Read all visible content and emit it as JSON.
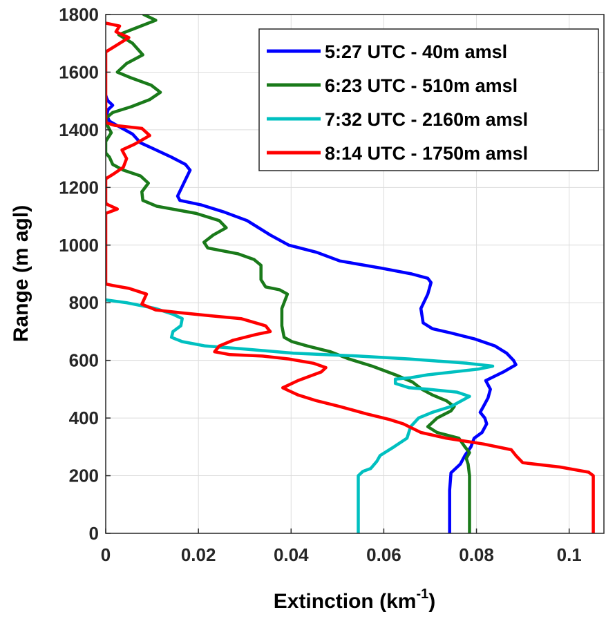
{
  "chart_data": {
    "type": "line",
    "xlabel": "Extinction (km",
    "xlabel_sup": "-1",
    "xlabel_end": ")",
    "ylabel": "Range (m agl)",
    "xlim": [
      0,
      0.1075
    ],
    "ylim": [
      0,
      1800
    ],
    "x_ticks": [
      0,
      0.02,
      0.04,
      0.06,
      0.08,
      0.1
    ],
    "x_tick_labels": [
      "0",
      "0.02",
      "0.04",
      "0.06",
      "0.08",
      "0.1"
    ],
    "y_ticks": [
      0,
      200,
      400,
      600,
      800,
      1000,
      1200,
      1400,
      1600,
      1800
    ],
    "y_tick_labels": [
      "0",
      "200",
      "400",
      "600",
      "800",
      "1000",
      "1200",
      "1400",
      "1600",
      "1800"
    ],
    "grid": true,
    "legend_position": "top-right",
    "series": [
      {
        "name": "5:27 UTC - 40m amsl",
        "color": "#0000ff",
        "points": [
          [
            0.0742,
            0
          ],
          [
            0.0742,
            150
          ],
          [
            0.0745,
            210
          ],
          [
            0.0765,
            240
          ],
          [
            0.0775,
            270
          ],
          [
            0.0788,
            300
          ],
          [
            0.0795,
            330
          ],
          [
            0.0812,
            350
          ],
          [
            0.0822,
            380
          ],
          [
            0.0818,
            400
          ],
          [
            0.0808,
            420
          ],
          [
            0.0815,
            440
          ],
          [
            0.0825,
            470
          ],
          [
            0.083,
            500
          ],
          [
            0.082,
            530
          ],
          [
            0.0858,
            560
          ],
          [
            0.0885,
            585
          ],
          [
            0.088,
            600
          ],
          [
            0.0865,
            625
          ],
          [
            0.084,
            650
          ],
          [
            0.0795,
            675
          ],
          [
            0.0745,
            695
          ],
          [
            0.0705,
            710
          ],
          [
            0.0685,
            730
          ],
          [
            0.068,
            780
          ],
          [
            0.0695,
            830
          ],
          [
            0.0702,
            870
          ],
          [
            0.0695,
            885
          ],
          [
            0.066,
            900
          ],
          [
            0.0595,
            920
          ],
          [
            0.0505,
            945
          ],
          [
            0.0455,
            975
          ],
          [
            0.0395,
            1000
          ],
          [
            0.0355,
            1035
          ],
          [
            0.0335,
            1055
          ],
          [
            0.0305,
            1085
          ],
          [
            0.0255,
            1115
          ],
          [
            0.0205,
            1140
          ],
          [
            0.016,
            1155
          ],
          [
            0.0155,
            1170
          ],
          [
            0.017,
            1220
          ],
          [
            0.0182,
            1260
          ],
          [
            0.0172,
            1280
          ],
          [
            0.0142,
            1305
          ],
          [
            0.0102,
            1335
          ],
          [
            0.0075,
            1355
          ],
          [
            0.0058,
            1385
          ],
          [
            0.003,
            1410
          ],
          [
            0.0008,
            1430
          ],
          [
            0.0002,
            1450
          ],
          [
            0.0005,
            1470
          ],
          [
            0.0015,
            1485
          ],
          [
            0.0005,
            1500
          ],
          [
            0.0002,
            1510
          ],
          [
            0.0,
            1520
          ]
        ]
      },
      {
        "name": "6:23 UTC - 510m amsl",
        "color": "#1a7a1a",
        "points": [
          [
            0.0785,
            0
          ],
          [
            0.0785,
            150
          ],
          [
            0.0785,
            200
          ],
          [
            0.0782,
            240
          ],
          [
            0.0778,
            260
          ],
          [
            0.0785,
            280
          ],
          [
            0.0775,
            300
          ],
          [
            0.0762,
            330
          ],
          [
            0.0715,
            350
          ],
          [
            0.0695,
            370
          ],
          [
            0.0715,
            400
          ],
          [
            0.0745,
            425
          ],
          [
            0.0752,
            440
          ],
          [
            0.0735,
            460
          ],
          [
            0.0705,
            480
          ],
          [
            0.0682,
            500
          ],
          [
            0.0662,
            525
          ],
          [
            0.0625,
            550
          ],
          [
            0.0575,
            580
          ],
          [
            0.0525,
            605
          ],
          [
            0.0485,
            630
          ],
          [
            0.0435,
            650
          ],
          [
            0.0402,
            665
          ],
          [
            0.0385,
            680
          ],
          [
            0.038,
            720
          ],
          [
            0.038,
            780
          ],
          [
            0.0392,
            830
          ],
          [
            0.0375,
            845
          ],
          [
            0.0345,
            855
          ],
          [
            0.0335,
            880
          ],
          [
            0.0335,
            930
          ],
          [
            0.032,
            950
          ],
          [
            0.0285,
            970
          ],
          [
            0.022,
            990
          ],
          [
            0.0212,
            1010
          ],
          [
            0.0232,
            1035
          ],
          [
            0.026,
            1060
          ],
          [
            0.0245,
            1085
          ],
          [
            0.0195,
            1110
          ],
          [
            0.011,
            1135
          ],
          [
            0.008,
            1155
          ],
          [
            0.0078,
            1185
          ],
          [
            0.0092,
            1215
          ],
          [
            0.0075,
            1240
          ],
          [
            0.0038,
            1260
          ],
          [
            0.0015,
            1280
          ],
          [
            0.0008,
            1305
          ],
          [
            0.0,
            1320
          ],
          [
            0.0,
            1360
          ],
          [
            0.0012,
            1390
          ],
          [
            0.0002,
            1420
          ],
          [
            0.0,
            1440
          ],
          [
            0.0015,
            1460
          ],
          [
            0.0055,
            1480
          ],
          [
            0.0095,
            1505
          ],
          [
            0.0118,
            1530
          ],
          [
            0.0098,
            1555
          ],
          [
            0.0055,
            1580
          ],
          [
            0.0025,
            1600
          ],
          [
            0.0045,
            1630
          ],
          [
            0.008,
            1660
          ],
          [
            0.0058,
            1700
          ],
          [
            0.0028,
            1730
          ],
          [
            0.006,
            1750
          ],
          [
            0.0108,
            1780
          ],
          [
            0.0082,
            1800
          ]
        ]
      },
      {
        "name": "7:32 UTC - 2160m amsl",
        "color": "#00c0c0",
        "points": [
          [
            0.0545,
            0
          ],
          [
            0.0545,
            150
          ],
          [
            0.0545,
            200
          ],
          [
            0.0555,
            215
          ],
          [
            0.0572,
            225
          ],
          [
            0.0585,
            250
          ],
          [
            0.0592,
            270
          ],
          [
            0.0622,
            300
          ],
          [
            0.065,
            330
          ],
          [
            0.0658,
            370
          ],
          [
            0.0675,
            400
          ],
          [
            0.0705,
            420
          ],
          [
            0.0745,
            440
          ],
          [
            0.0785,
            475
          ],
          [
            0.0758,
            490
          ],
          [
            0.0695,
            500
          ],
          [
            0.0655,
            505
          ],
          [
            0.0625,
            520
          ],
          [
            0.0625,
            535
          ],
          [
            0.0658,
            540
          ],
          [
            0.0695,
            550
          ],
          [
            0.0805,
            570
          ],
          [
            0.0835,
            580
          ],
          [
            0.078,
            590
          ],
          [
            0.0655,
            605
          ],
          [
            0.0545,
            615
          ],
          [
            0.0405,
            625
          ],
          [
            0.0295,
            640
          ],
          [
            0.0215,
            650
          ],
          [
            0.0165,
            665
          ],
          [
            0.0142,
            680
          ],
          [
            0.0145,
            700
          ],
          [
            0.0162,
            720
          ],
          [
            0.0165,
            745
          ],
          [
            0.0145,
            760
          ],
          [
            0.0108,
            780
          ],
          [
            0.0045,
            800
          ],
          [
            0.0,
            810
          ]
        ]
      },
      {
        "name": "8:14 UTC - 1750m amsl",
        "color": "#ff0000",
        "points": [
          [
            0.1052,
            0
          ],
          [
            0.1052,
            150
          ],
          [
            0.1052,
            200
          ],
          [
            0.1042,
            212
          ],
          [
            0.098,
            230
          ],
          [
            0.09,
            245
          ],
          [
            0.0885,
            270
          ],
          [
            0.0875,
            290
          ],
          [
            0.0815,
            310
          ],
          [
            0.0735,
            330
          ],
          [
            0.068,
            350
          ],
          [
            0.0642,
            380
          ],
          [
            0.0612,
            395
          ],
          [
            0.0562,
            415
          ],
          [
            0.0505,
            440
          ],
          [
            0.0455,
            460
          ],
          [
            0.0415,
            480
          ],
          [
            0.0395,
            495
          ],
          [
            0.0382,
            505
          ],
          [
            0.0415,
            530
          ],
          [
            0.0465,
            560
          ],
          [
            0.0475,
            575
          ],
          [
            0.0448,
            590
          ],
          [
            0.0395,
            605
          ],
          [
            0.0338,
            615
          ],
          [
            0.0268,
            620
          ],
          [
            0.0235,
            630
          ],
          [
            0.0245,
            650
          ],
          [
            0.0275,
            670
          ],
          [
            0.0325,
            690
          ],
          [
            0.0355,
            700
          ],
          [
            0.0345,
            720
          ],
          [
            0.0292,
            745
          ],
          [
            0.0225,
            755
          ],
          [
            0.0162,
            765
          ],
          [
            0.0108,
            775
          ],
          [
            0.0078,
            795
          ],
          [
            0.0088,
            830
          ],
          [
            0.005,
            850
          ],
          [
            0.0015,
            860
          ],
          [
            0.0,
            865
          ],
          [
            0.0,
            1110
          ],
          [
            0.0025,
            1125
          ],
          [
            0.0005,
            1140
          ],
          [
            0.0,
            1145
          ],
          [
            0.0,
            1230
          ],
          [
            0.0015,
            1245
          ],
          [
            0.0038,
            1270
          ],
          [
            0.0045,
            1300
          ],
          [
            0.0035,
            1330
          ],
          [
            0.0062,
            1350
          ],
          [
            0.0095,
            1380
          ],
          [
            0.0078,
            1405
          ],
          [
            0.002,
            1415
          ],
          [
            0.0,
            1425
          ],
          [
            0.0,
            1670
          ],
          [
            0.002,
            1690
          ],
          [
            0.005,
            1720
          ],
          [
            0.0022,
            1740
          ],
          [
            0.003,
            1760
          ],
          [
            0.0,
            1770
          ]
        ]
      }
    ]
  }
}
